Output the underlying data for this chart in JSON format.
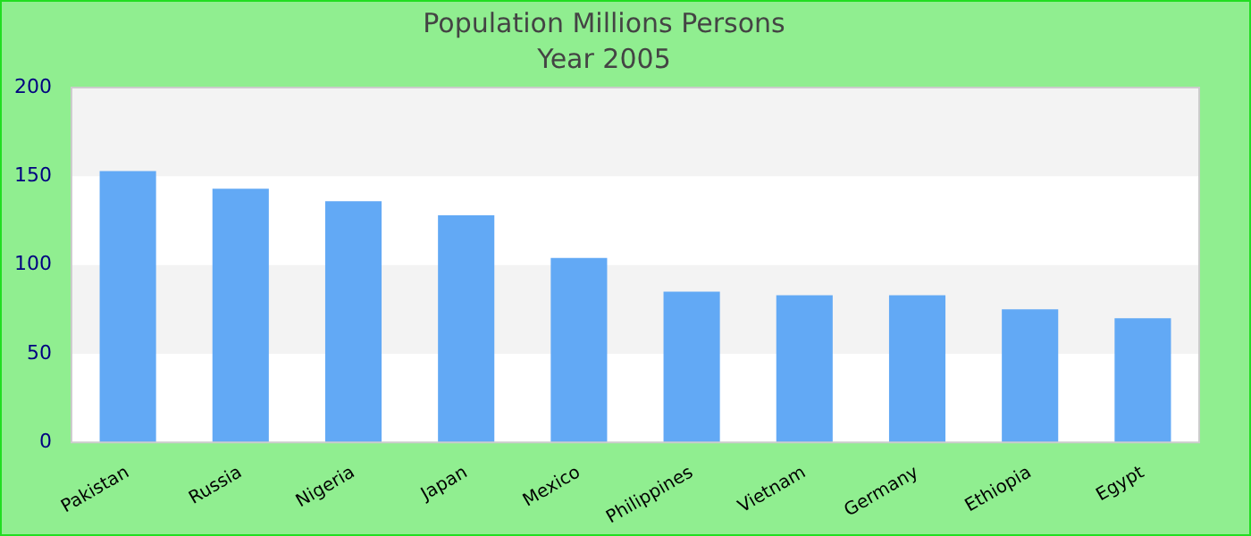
{
  "chart_data": {
    "type": "bar",
    "title": "Population Millions Persons",
    "subtitle": "Year 2005",
    "categories": [
      "Pakistan",
      "Russia",
      "Nigeria",
      "Japan",
      "Mexico",
      "Philippines",
      "Vietnam",
      "Germany",
      "Ethiopia",
      "Egypt"
    ],
    "values": [
      153,
      143,
      136,
      128,
      104,
      85,
      83,
      83,
      75,
      70
    ],
    "color": "#62a9f5",
    "ylim": [
      0,
      200
    ],
    "yticks": [
      0,
      50,
      100,
      150,
      200
    ],
    "legend": false,
    "bands": [
      {
        "axis": "y",
        "from": 50,
        "to": 100,
        "color": "#f3f3f3"
      },
      {
        "axis": "y",
        "from": 150,
        "to": 200,
        "color": "#f3f3f3"
      }
    ]
  }
}
